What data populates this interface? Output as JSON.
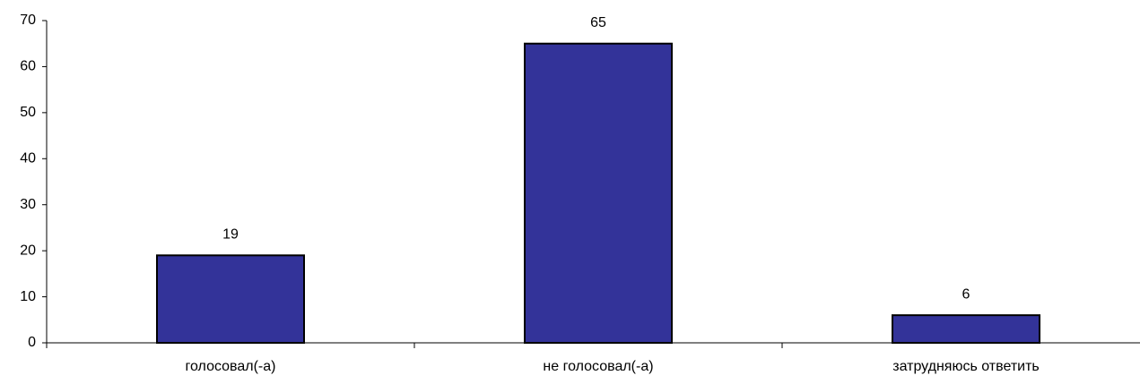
{
  "chart_data": {
    "type": "bar",
    "categories": [
      "голосовал(-а)",
      "не голосовал(-а)",
      "затрудняюсь ответить"
    ],
    "values": [
      19,
      65,
      6
    ],
    "color": "#333399",
    "ylim": [
      0,
      70
    ],
    "yticks": [
      0,
      10,
      20,
      30,
      40,
      50,
      60,
      70
    ],
    "grid": false
  }
}
